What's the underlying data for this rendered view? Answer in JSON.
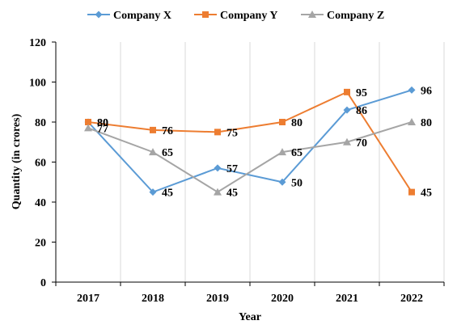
{
  "chart_data": {
    "type": "line",
    "title": "",
    "xlabel": "Year",
    "ylabel": "Quantity (in crores)",
    "categories": [
      "2017",
      "2018",
      "2019",
      "2020",
      "2021",
      "2022"
    ],
    "ylim": [
      0,
      120
    ],
    "yticks": [
      0,
      20,
      40,
      60,
      80,
      100,
      120
    ],
    "grid": "vertical",
    "legend_position": "top",
    "series": [
      {
        "name": "Company X",
        "values": [
          80,
          45,
          57,
          50,
          86,
          96
        ],
        "color": "#5B9BD5",
        "marker": "diamond"
      },
      {
        "name": "Company Y",
        "values": [
          80,
          76,
          75,
          80,
          95,
          45
        ],
        "color": "#ED7D31",
        "marker": "square"
      },
      {
        "name": "Company Z",
        "values": [
          77,
          65,
          45,
          65,
          70,
          80
        ],
        "color": "#A5A5A5",
        "marker": "triangle"
      }
    ]
  }
}
